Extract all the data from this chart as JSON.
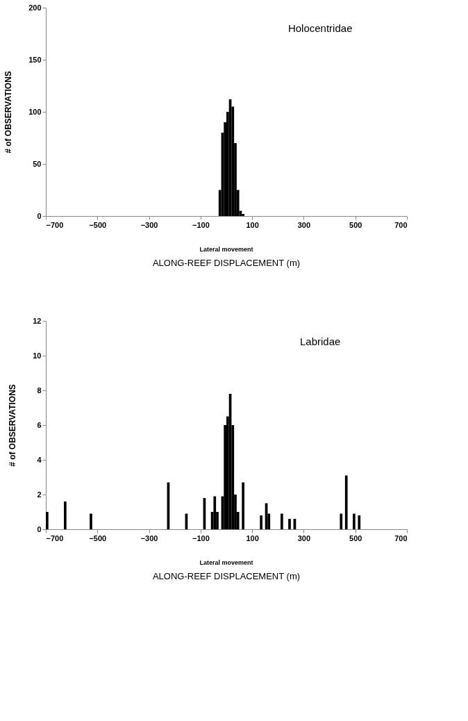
{
  "chart_data": [
    {
      "type": "histogram",
      "title": "Holocentridae",
      "xlabel": "ALONG-REEF DISPLACEMENT (m)",
      "ylabel": "# of OBSERVATIONS",
      "annotations": [
        "Lateral movement"
      ],
      "color": "#000000",
      "bins": [
        -30,
        -20,
        -10,
        0,
        10,
        20,
        30,
        40,
        50,
        60,
        70
      ],
      "values": [
        25,
        80,
        90,
        100,
        112,
        105,
        70,
        25,
        5,
        2
      ],
      "xlim": [
        -700,
        700
      ],
      "xticks": [
        -700,
        -500,
        -300,
        -100,
        100,
        300,
        500,
        700
      ],
      "ylim": [
        0,
        200
      ],
      "yticks": [
        0,
        50,
        100,
        150,
        200
      ],
      "grid": false
    },
    {
      "type": "histogram",
      "title": "Labridae",
      "xlabel": "ALONG-REEF DISPLACEMENT (m)",
      "ylabel": "# of OBSERVATIONS",
      "annotations": [
        "Lateral movement"
      ],
      "color": "#000000",
      "bins": [
        -700,
        -690,
        -680,
        -670,
        -660,
        -650,
        -640,
        -630,
        -620,
        -610,
        -600,
        -590,
        -580,
        -570,
        -560,
        -550,
        -540,
        -530,
        -520,
        -510,
        -500,
        -490,
        -480,
        -470,
        -460,
        -450,
        -440,
        -430,
        -420,
        -410,
        -400,
        -390,
        -380,
        -370,
        -360,
        -350,
        -340,
        -330,
        -320,
        -310,
        -300,
        -290,
        -280,
        -270,
        -260,
        -250,
        -240,
        -230,
        -220,
        -210,
        -200,
        -190,
        -180,
        -170,
        -160,
        -150,
        -140,
        -130,
        -120,
        -110,
        -100,
        -90,
        -80,
        -70,
        -60,
        -50,
        -40,
        -30,
        -20,
        -10,
        0,
        10,
        20,
        30,
        40,
        50,
        60,
        70,
        80,
        90,
        100,
        110,
        120,
        130,
        140,
        150,
        160,
        170,
        180,
        190,
        200,
        210,
        220,
        230,
        240,
        250,
        260,
        270,
        280,
        290,
        300,
        310,
        320,
        330,
        340,
        350,
        360,
        370,
        380,
        390,
        400,
        410,
        420,
        430,
        440,
        450,
        460,
        470,
        480,
        490,
        500,
        510,
        520,
        530,
        540,
        550,
        560,
        570,
        580,
        590,
        600,
        610,
        620,
        630
      ],
      "values": [
        1,
        0,
        0,
        0,
        0,
        0,
        0,
        1.6,
        0,
        0,
        0,
        0,
        0,
        0,
        0,
        0,
        0,
        0.9,
        0,
        0,
        0,
        0,
        0,
        0,
        0,
        0,
        0,
        0,
        0,
        0,
        0,
        0,
        0,
        0,
        0,
        0,
        0,
        0,
        0,
        0,
        0,
        0,
        0,
        0,
        0,
        0,
        0,
        2.7,
        0,
        0,
        0,
        0,
        0,
        0,
        0.9,
        0,
        0,
        0,
        0,
        0,
        0,
        1.8,
        0,
        0,
        1.0,
        1.9,
        1.0,
        0,
        1.9,
        6,
        6.5,
        7.8,
        6,
        2,
        1,
        0,
        2.7,
        0,
        0,
        0,
        0,
        0,
        0,
        0.8,
        0,
        1.5,
        0.9,
        0,
        0,
        0,
        0,
        0.9,
        0,
        0,
        0.6,
        0,
        0.6,
        0,
        0,
        0,
        0,
        0,
        0,
        0,
        0,
        0,
        0,
        0,
        0,
        0,
        0,
        0,
        0,
        0,
        0.9,
        0,
        3.1,
        0,
        0,
        0.9,
        0,
        0.8,
        0,
        0,
        0,
        0,
        0,
        0,
        0,
        0,
        0,
        0,
        0
      ],
      "xlim": [
        -700,
        700
      ],
      "xticks": [
        -700,
        -500,
        -300,
        -100,
        100,
        300,
        500,
        700
      ],
      "ylim": [
        0,
        12
      ],
      "yticks": [
        0,
        2,
        4,
        6,
        8,
        10,
        12
      ],
      "grid": false
    }
  ]
}
